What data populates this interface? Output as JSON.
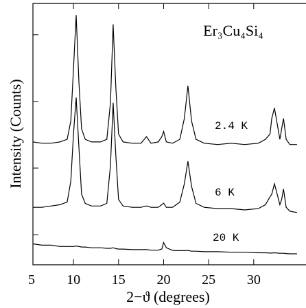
{
  "chart_data": {
    "type": "line",
    "title": "Er₃Cu₄Si₄",
    "x_label": "2−ϑ (degrees)",
    "y_label": "Intensity (Counts)",
    "xlim": [
      5.5,
      35.8
    ],
    "xticks": [
      5,
      10,
      15,
      20,
      25,
      30
    ],
    "ylim": [
      0,
      100
    ],
    "yticks": [
      11.5,
      37,
      62.5,
      88
    ],
    "x": [
      5.5,
      6.5,
      7.5,
      8.5,
      9.3,
      9.7,
      10.0,
      10.3,
      10.6,
      10.9,
      11.3,
      12,
      13,
      13.7,
      14.1,
      14.4,
      14.7,
      15.0,
      15.5,
      16.5,
      17.5,
      18.1,
      18.6,
      19.4,
      19.8,
      20.0,
      20.3,
      21,
      21.8,
      22.3,
      22.7,
      23.1,
      23.6,
      24.5,
      26,
      27.5,
      29,
      30.5,
      31.3,
      31.8,
      32.0,
      32.3,
      32.6,
      32.9,
      33.1,
      33.3,
      33.6,
      34.0,
      34.8
    ],
    "series": [
      {
        "name": "2.4  K",
        "color": "#000000",
        "values": [
          47,
          46.5,
          46.5,
          47,
          48,
          55,
          75,
          95.5,
          70,
          52,
          48,
          47,
          47,
          48,
          62,
          92,
          68,
          50,
          47,
          46.5,
          46.5,
          49,
          46.5,
          47,
          49,
          51,
          47,
          46.5,
          48,
          56,
          68.5,
          55,
          48,
          46.5,
          46,
          46.5,
          46,
          46.5,
          48,
          50,
          56,
          60,
          54,
          48,
          52,
          56,
          48,
          46,
          46
        ]
      },
      {
        "name": "6  K",
        "color": "#000000",
        "values": [
          22,
          22,
          22.5,
          23,
          24,
          32,
          50,
          64,
          45,
          27,
          23.5,
          22.5,
          22.5,
          23.5,
          38,
          62,
          42,
          25,
          22.5,
          22,
          22,
          22.5,
          22,
          22,
          23,
          23.6,
          22,
          22,
          24,
          31,
          39.6,
          30,
          23.5,
          22,
          21.5,
          21.5,
          21,
          21.5,
          23,
          26,
          27,
          31,
          27,
          23,
          25,
          29,
          22,
          20.5,
          20
        ]
      },
      {
        "name": "20  K",
        "color": "#000000",
        "values": [
          8,
          7.5,
          7.5,
          7,
          7,
          7,
          7,
          7.2,
          7,
          6.8,
          6.8,
          6.5,
          6.5,
          6.3,
          6.3,
          6.5,
          6.2,
          6,
          6,
          5.8,
          5.8,
          5.8,
          5.6,
          5.6,
          6,
          8.5,
          6.5,
          5.5,
          5.4,
          5.4,
          5.5,
          5.2,
          5.2,
          5,
          5,
          4.8,
          4.8,
          4.6,
          4.6,
          4.5,
          4.5,
          4.6,
          4.5,
          4.4,
          4.4,
          4.4,
          4.3,
          4.2,
          4.2
        ]
      }
    ]
  }
}
